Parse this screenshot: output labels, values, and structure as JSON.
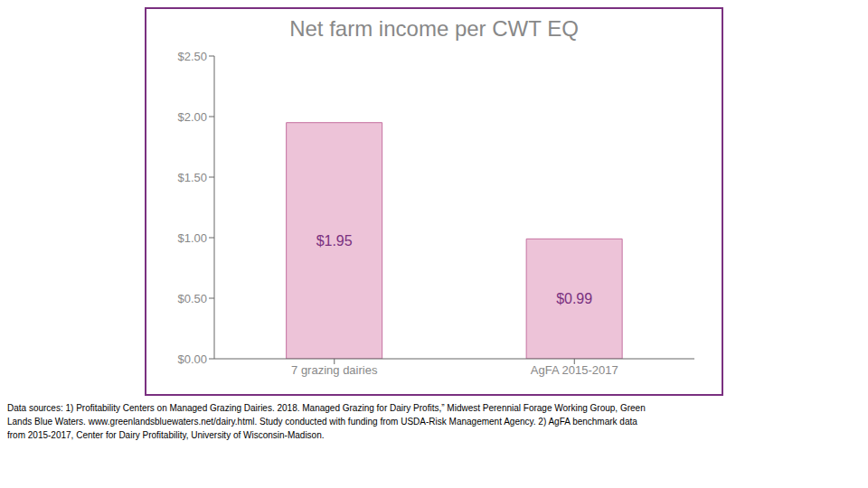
{
  "chart_data": {
    "type": "bar",
    "title": "Net farm income per CWT EQ",
    "categories": [
      "7 grazing dairies",
      "AgFA 2015-2017"
    ],
    "values": [
      1.95,
      0.99
    ],
    "value_labels": [
      "$1.95",
      "$0.99"
    ],
    "data_labels": true,
    "color": "#edc3d8",
    "ylim": [
      0,
      2.5
    ],
    "yticks": [
      {
        "value": 0.0,
        "label": "$0.00"
      },
      {
        "value": 0.5,
        "label": "$0.50"
      },
      {
        "value": 1.0,
        "label": "$1.00"
      },
      {
        "value": 1.5,
        "label": "$1.50"
      },
      {
        "value": 2.0,
        "label": "$2.00"
      },
      {
        "value": 2.5,
        "label": "$2.50"
      }
    ],
    "grid": false,
    "annotations": [
      "Data sources: 1) Profitability Centers on Managed Grazing Dairies. 2018. Managed Grazing for Dairy Profits,” Midwest Perennial Forage Working Group, Green\nLands Blue Waters. www.greenlandsbluewaters.net/dairy.html. Study conducted with funding from USDA-Risk Management Agency. 2) AgFA benchmark data\nfrom 2015-2017, Center for Dairy Profitability, University of Wisconsin-Madison."
    ]
  }
}
